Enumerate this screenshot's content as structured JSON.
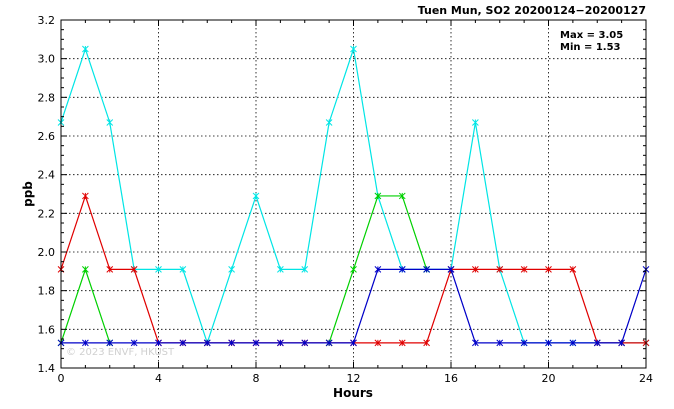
{
  "chart_data": {
    "type": "line",
    "title": "Tuen Mun, SO2 20200124−20200127",
    "xlabel": "Hours",
    "ylabel": "ppb",
    "xlim": [
      0,
      24
    ],
    "ylim": [
      1.4,
      3.2
    ],
    "xticks": [
      0,
      4,
      8,
      12,
      16,
      20,
      24
    ],
    "yticks": [
      1.4,
      1.6,
      1.8,
      2.0,
      2.2,
      2.4,
      2.6,
      2.8,
      3.0,
      3.2
    ],
    "grid": true,
    "stats": {
      "max": "Max = 3.05",
      "min": "Min = 1.53"
    },
    "watermark": "© 2023  ENVF, HKUST",
    "x": [
      0,
      1,
      2,
      3,
      4,
      5,
      6,
      7,
      8,
      9,
      10,
      11,
      12,
      13,
      14,
      15,
      16,
      17,
      18,
      19,
      20,
      21,
      22,
      23,
      24
    ],
    "series": [
      {
        "color": "#00e5e5",
        "values": [
          2.67,
          3.05,
          2.67,
          1.91,
          1.91,
          1.91,
          1.53,
          1.91,
          2.29,
          1.91,
          1.91,
          2.67,
          3.05,
          2.29,
          1.91,
          1.91,
          1.91,
          2.67,
          1.91,
          1.53,
          1.53,
          1.53,
          1.53,
          1.53,
          1.53
        ]
      },
      {
        "color": "#e00000",
        "values": [
          1.91,
          2.29,
          1.91,
          1.91,
          1.53,
          1.53,
          1.53,
          1.53,
          1.53,
          1.53,
          1.53,
          1.53,
          1.53,
          1.53,
          1.53,
          1.53,
          1.91,
          1.91,
          1.91,
          1.91,
          1.91,
          1.91,
          1.53,
          1.53,
          1.53
        ]
      },
      {
        "color": "#00d000",
        "values": [
          1.53,
          1.91,
          1.53,
          null,
          null,
          null,
          null,
          null,
          null,
          null,
          null,
          1.53,
          1.91,
          2.29,
          2.29,
          1.91,
          null,
          null,
          null,
          null,
          null,
          null,
          null,
          null,
          null
        ]
      },
      {
        "color": "#0000c8",
        "values": [
          1.53,
          1.53,
          1.53,
          1.53,
          1.53,
          1.53,
          1.53,
          1.53,
          1.53,
          1.53,
          1.53,
          1.53,
          1.53,
          1.91,
          1.91,
          1.91,
          1.91,
          1.53,
          1.53,
          1.53,
          1.53,
          1.53,
          1.53,
          1.53,
          1.91
        ]
      }
    ]
  }
}
